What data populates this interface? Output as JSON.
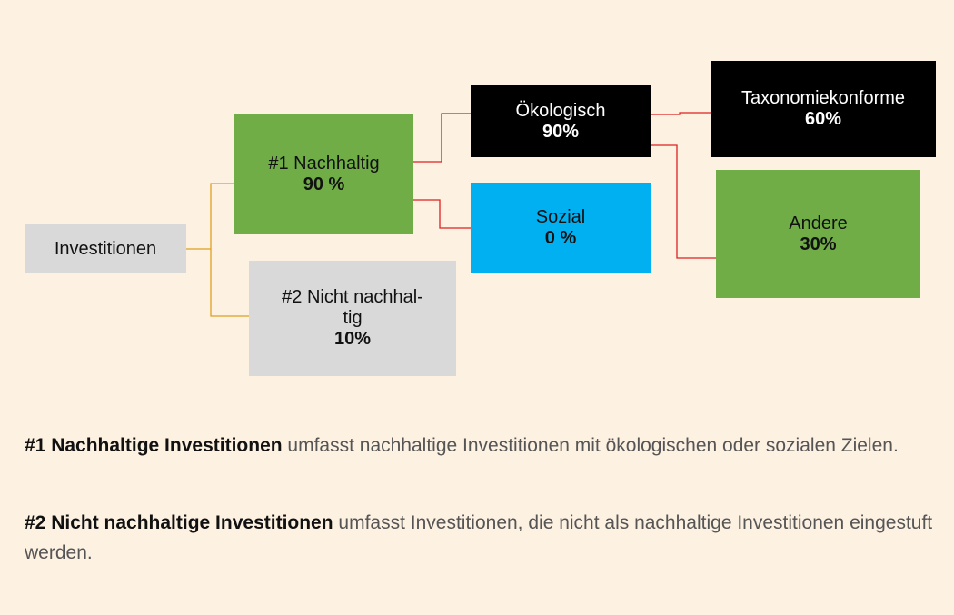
{
  "nodes": [
    {
      "lines": [
        "Investitionen"
      ]
    },
    {
      "lines": [
        "#1 Nachhaltig"
      ],
      "value": "90 %"
    },
    {
      "lines": [
        "#2 Nicht nachhal-",
        "tig"
      ],
      "value": "10%"
    },
    {
      "lines": [
        "Ökologisch"
      ],
      "value": "90%"
    },
    {
      "lines": [
        "Sozial"
      ],
      "value": "0 %"
    },
    {
      "lines": [
        "Taxonomiekonforme"
      ],
      "value": "60%"
    },
    {
      "lines": [
        "Andere"
      ],
      "value": "30%"
    }
  ],
  "notes": [
    {
      "term": "#1 Nachhaltige Investitionen",
      "text": " umfasst nachhaltige Investitionen mit ökologischen oder sozialen Zielen."
    },
    {
      "term": "#2 Nicht nachhaltige Investitionen",
      "text": " umfasst Investitionen, die nicht als nachhaltige Investitionen eingestuft werden."
    }
  ]
}
